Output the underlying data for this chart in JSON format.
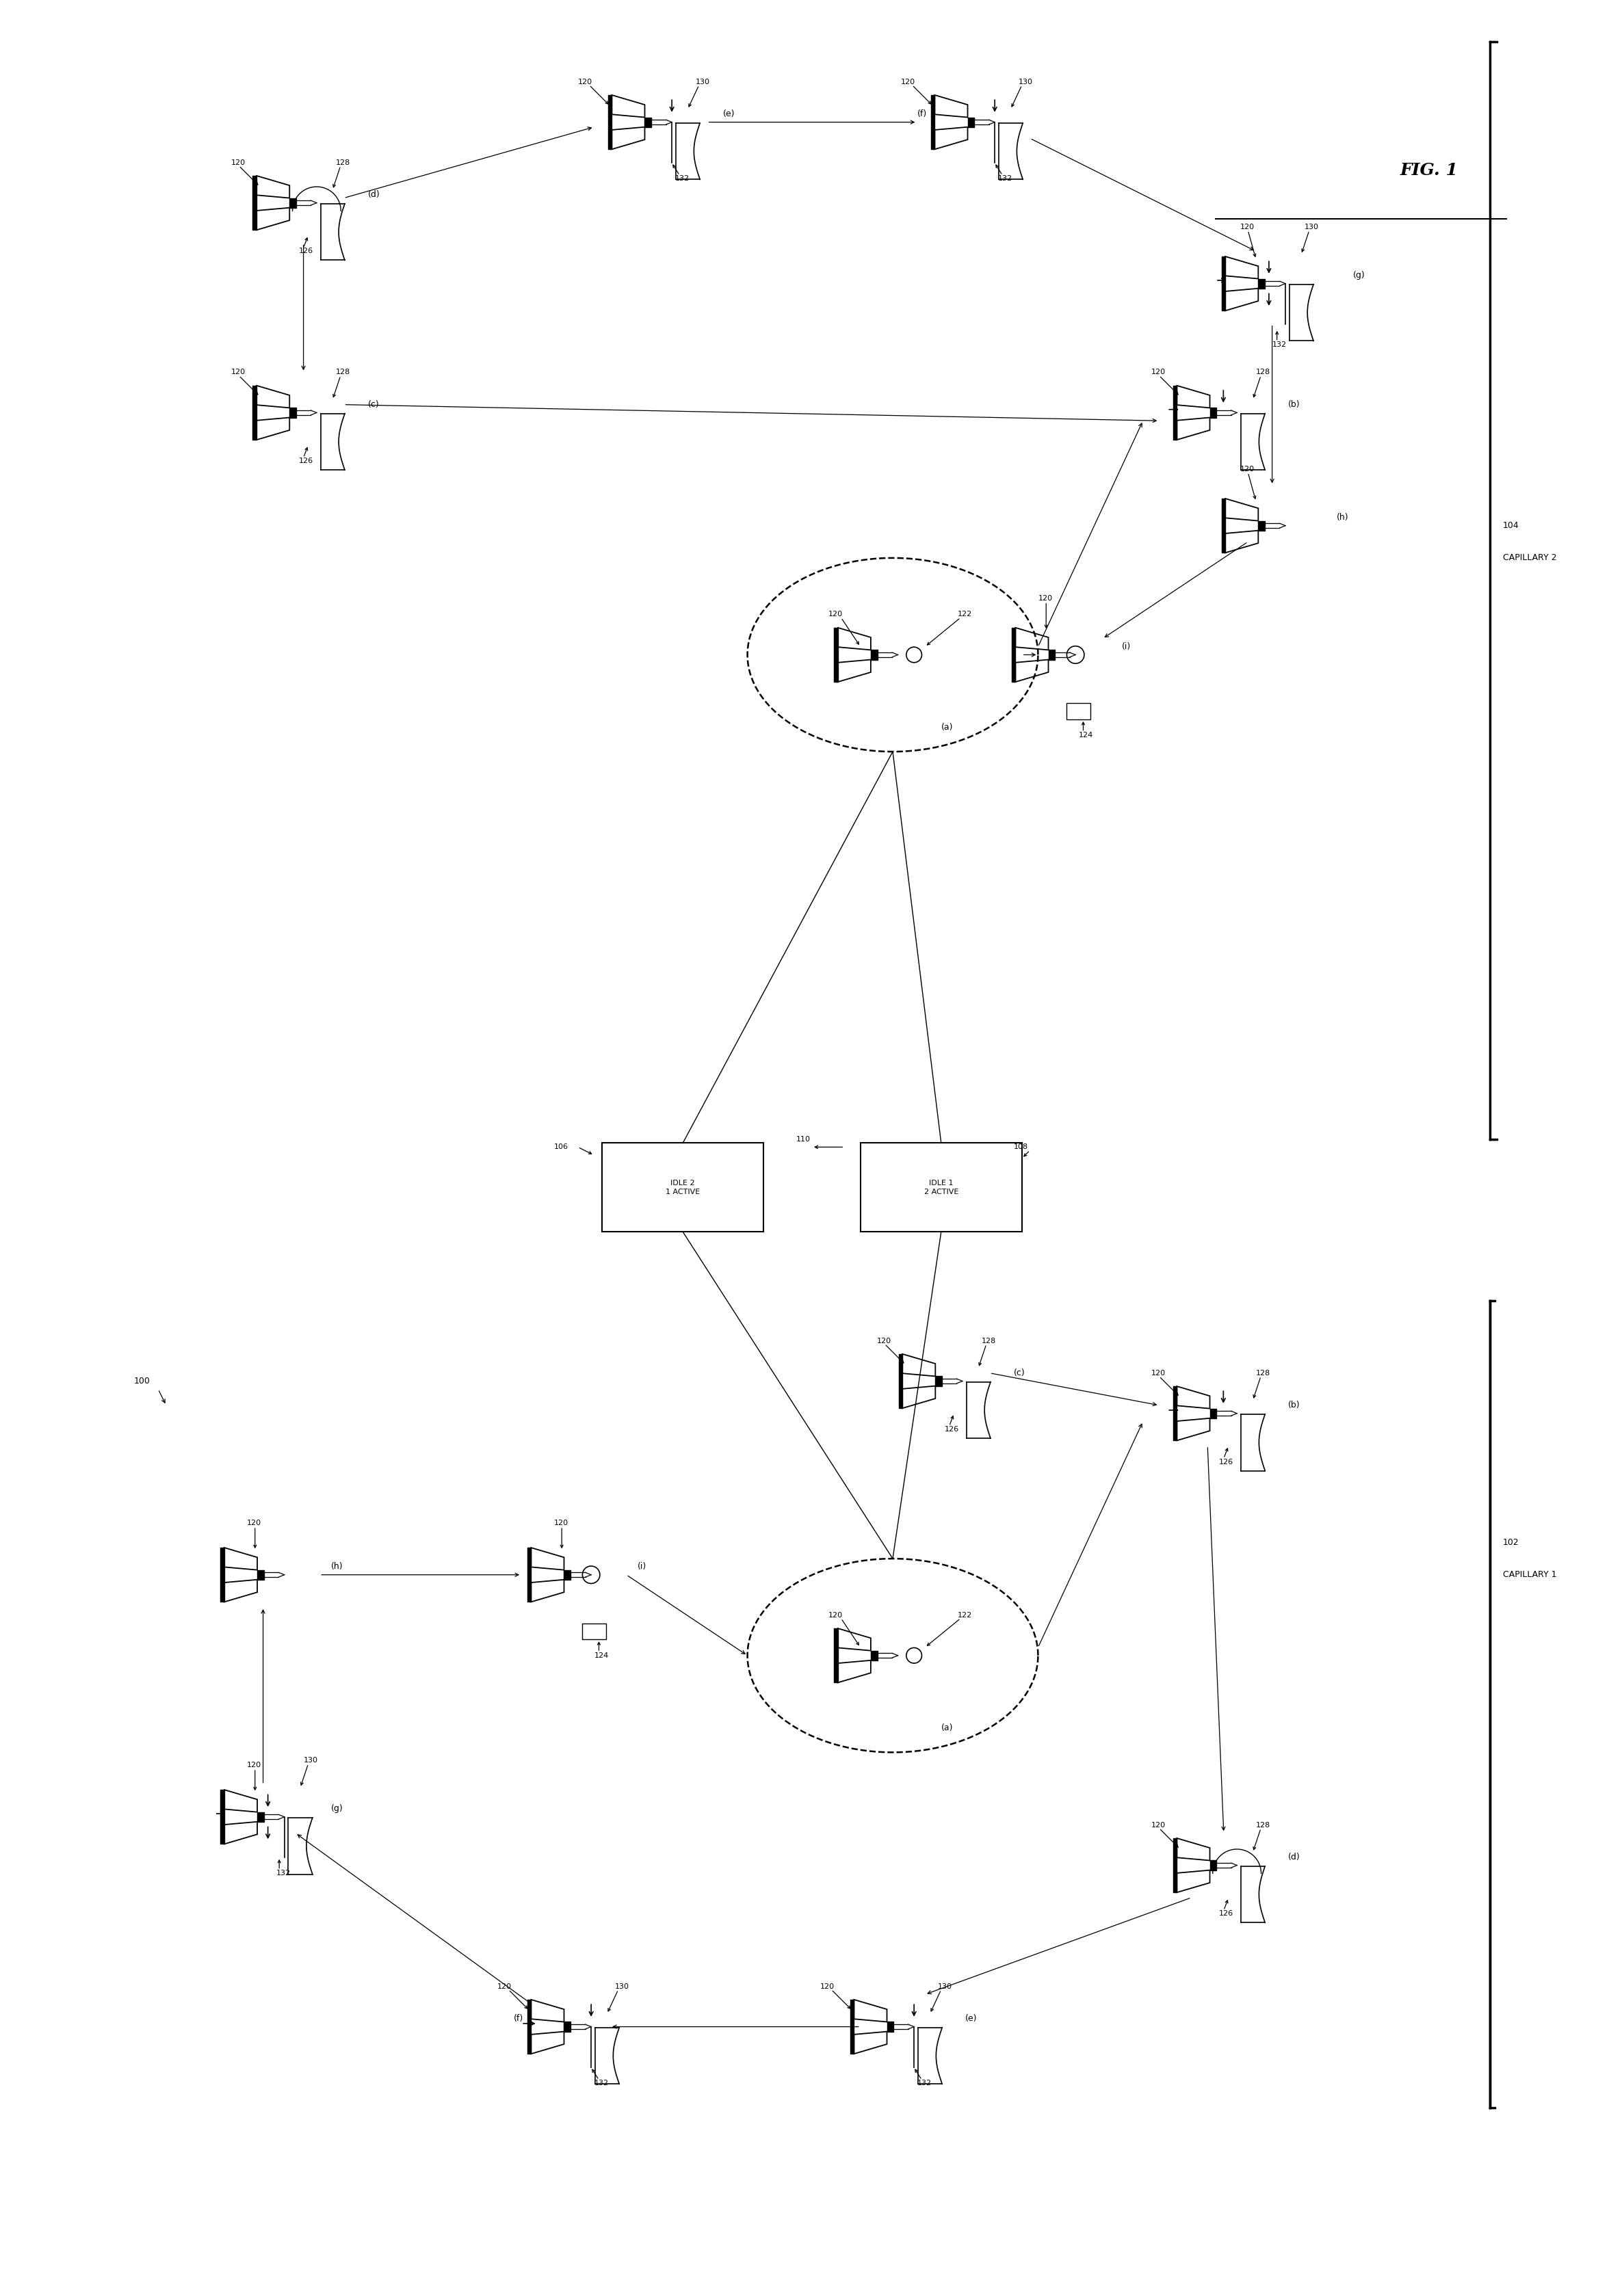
{
  "title": "FIG. 1",
  "background_color": "#ffffff",
  "line_color": "#000000",
  "fig_width": 23.74,
  "fig_height": 33.31,
  "capillary1_label": "CAPILLARY 1",
  "capillary1_ref": "102",
  "capillary2_label": "CAPILLARY 2",
  "capillary2_ref": "104",
  "system_ref": "100",
  "box1_label": "IDLE 2\n1 ACTIVE",
  "box1_ref": "106",
  "box2_label": "IDLE 1\n2 ACTIVE",
  "box2_ref": "108",
  "arrow_ref": "110",
  "center_ref": "122",
  "ball_ref": "124",
  "wedge_ref": "126",
  "substrate_ref": "128",
  "wire_ref": "130",
  "tail_ref": "132",
  "capillary_tool_ref": "120"
}
